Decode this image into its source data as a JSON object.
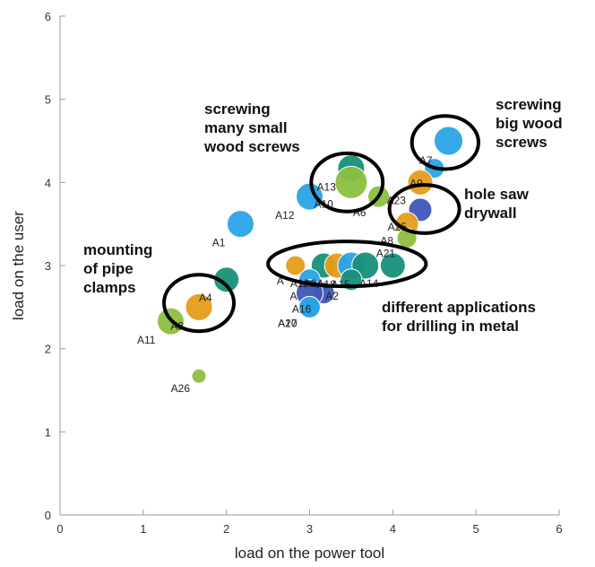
{
  "chart_data": {
    "type": "scatter",
    "xlabel": "load on the power tool",
    "ylabel": "load on the user",
    "xlim": [
      0,
      6
    ],
    "ylim": [
      0,
      6
    ],
    "xticks": [
      "0",
      "1",
      "2",
      "3",
      "4",
      "5",
      "6"
    ],
    "yticks": [
      "0",
      "1",
      "2",
      "3",
      "4",
      "5",
      "6"
    ],
    "grid": false,
    "colors": {
      "blue": "#2aa3e6",
      "green": "#8cbf3f",
      "teal": "#17907a",
      "orange": "#e59d1a",
      "navy": "#4056b8"
    },
    "points": [
      {
        "label": "A1",
        "x": 2.17,
        "y": 3.5,
        "color": "blue",
        "size": 15
      },
      {
        "label": "A3",
        "x": 1.67,
        "y": 2.5,
        "color": "orange",
        "size": 15
      },
      {
        "label": "A4",
        "x": 2.0,
        "y": 2.83,
        "color": "teal",
        "size": 14
      },
      {
        "label": "A11",
        "x": 1.33,
        "y": 2.33,
        "color": "green",
        "size": 15
      },
      {
        "label": "A26",
        "x": 1.67,
        "y": 1.67,
        "color": "green",
        "size": 8
      },
      {
        "label": "A12",
        "x": 3.0,
        "y": 3.83,
        "color": "blue",
        "size": 15
      },
      {
        "label": "A13",
        "x": 3.5,
        "y": 4.17,
        "color": "teal",
        "size": 15
      },
      {
        "label": "A10",
        "x": 3.5,
        "y": 4.0,
        "color": "green",
        "size": 18
      },
      {
        "label": "A6",
        "x": 3.83,
        "y": 3.83,
        "color": "green",
        "size": 12
      },
      {
        "label": "A7",
        "x": 4.67,
        "y": 4.5,
        "color": "blue",
        "size": 16
      },
      {
        "label": "A9",
        "x": 4.5,
        "y": 4.17,
        "color": "blue",
        "size": 11
      },
      {
        "label": "A23",
        "x": 4.33,
        "y": 4.0,
        "color": "orange",
        "size": 14
      },
      {
        "label": "A25",
        "x": 4.33,
        "y": 3.67,
        "color": "navy",
        "size": 13
      },
      {
        "label": "A8",
        "x": 4.17,
        "y": 3.5,
        "color": "orange",
        "size": 13
      },
      {
        "label": "A21",
        "x": 4.17,
        "y": 3.33,
        "color": "green",
        "size": 11
      },
      {
        "label": "A",
        "x": 2.83,
        "y": 3.0,
        "color": "orange",
        "size": 11
      },
      {
        "label": "A19",
        "x": 3.17,
        "y": 3.0,
        "color": "teal",
        "size": 14
      },
      {
        "label": "A24",
        "x": 3.33,
        "y": 3.0,
        "color": "orange",
        "size": 14
      },
      {
        "label": "A18",
        "x": 3.5,
        "y": 3.0,
        "color": "blue",
        "size": 15
      },
      {
        "label": "A15",
        "x": 3.67,
        "y": 3.0,
        "color": "teal",
        "size": 15
      },
      {
        "label": "A14",
        "x": 4.0,
        "y": 3.0,
        "color": "teal",
        "size": 14
      },
      {
        "label": "A2",
        "x": 3.5,
        "y": 2.83,
        "color": "teal",
        "size": 12
      },
      {
        "label": "A",
        "x": 3.0,
        "y": 2.83,
        "color": "blue",
        "size": 12
      },
      {
        "label": "A16",
        "x": 3.17,
        "y": 2.67,
        "color": "navy",
        "size": 12
      },
      {
        "label": "",
        "x": 3.0,
        "y": 2.67,
        "color": "navy",
        "size": 15
      },
      {
        "label": "A20",
        "x": 3.0,
        "y": 2.5,
        "color": "blue",
        "size": 12
      },
      {
        "label": "A17",
        "x": 3.0,
        "y": 2.5,
        "color": "blue",
        "size": 12
      }
    ],
    "groups": [
      {
        "text": [
          "mounting",
          "of pipe",
          "clamps"
        ],
        "cx": 1.67,
        "cy": 2.55,
        "rx": 0.42,
        "ry": 0.34
      },
      {
        "text": [
          "screwing",
          "many small",
          "wood screws"
        ],
        "cx": 3.45,
        "cy": 4.0,
        "rx": 0.43,
        "ry": 0.35
      },
      {
        "text": [
          "screwing",
          "big wood",
          "screws"
        ],
        "cx": 4.63,
        "cy": 4.48,
        "rx": 0.4,
        "ry": 0.32
      },
      {
        "text": [
          "hole saw",
          "drywall"
        ],
        "cx": 4.38,
        "cy": 3.68,
        "rx": 0.42,
        "ry": 0.29
      },
      {
        "text": [
          "different applications",
          "for drilling in metal"
        ],
        "cx": 3.45,
        "cy": 3.02,
        "rx": 0.95,
        "ry": 0.27
      }
    ]
  }
}
